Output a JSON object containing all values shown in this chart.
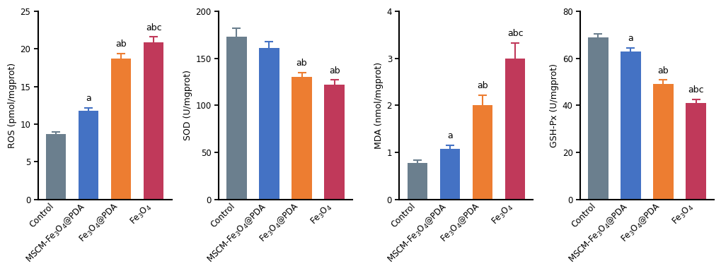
{
  "charts": [
    {
      "ylabel": "ROS (pmol/mgprot)",
      "ylim": [
        0,
        25
      ],
      "yticks": [
        0,
        5,
        10,
        15,
        20,
        25
      ],
      "values": [
        8.7,
        11.8,
        18.7,
        20.9
      ],
      "errors": [
        0.3,
        0.4,
        0.7,
        0.7
      ],
      "annotations": [
        "",
        "a",
        "ab",
        "abc"
      ]
    },
    {
      "ylabel": "SOD (U/mgprot)",
      "ylim": [
        0,
        200
      ],
      "yticks": [
        0,
        50,
        100,
        150,
        200
      ],
      "values": [
        173,
        161,
        130,
        122
      ],
      "errors": [
        9,
        7,
        5,
        5
      ],
      "annotations": [
        "",
        "",
        "ab",
        "ab"
      ]
    },
    {
      "ylabel": "MDA (nmol/mgprot)",
      "ylim": [
        0,
        4
      ],
      "yticks": [
        0,
        1,
        2,
        3,
        4
      ],
      "values": [
        0.78,
        1.08,
        2.0,
        3.0
      ],
      "errors": [
        0.05,
        0.07,
        0.22,
        0.33
      ],
      "annotations": [
        "",
        "a",
        "ab",
        "abc"
      ]
    },
    {
      "ylabel": "GSH-Px (U/mgprot)",
      "ylim": [
        0,
        80
      ],
      "yticks": [
        0,
        20,
        40,
        60,
        80
      ],
      "values": [
        69,
        63,
        49,
        41
      ],
      "errors": [
        1.5,
        1.5,
        1.8,
        1.5
      ],
      "annotations": [
        "",
        "a",
        "ab",
        "abc"
      ]
    }
  ],
  "bar_colors": [
    "#6b7f8e",
    "#4472c4",
    "#ed7d31",
    "#c0395a"
  ],
  "figsize": [
    10.2,
    3.87
  ],
  "dpi": 100
}
